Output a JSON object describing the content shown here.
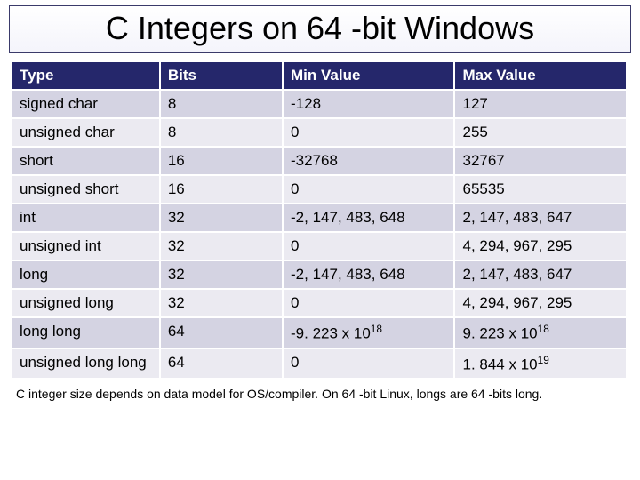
{
  "title": "C Integers on 64 -bit Windows",
  "table": {
    "type": "table",
    "header_bg": "#25276b",
    "header_fg": "#ffffff",
    "odd_row_bg": "#d4d3e2",
    "even_row_bg": "#ebeaf1",
    "columns": [
      "Type",
      "Bits",
      "Min Value",
      "Max Value"
    ],
    "rows": [
      {
        "type": "signed char",
        "bits": "8",
        "min": "-128",
        "max": "127"
      },
      {
        "type": "unsigned char",
        "bits": "8",
        "min": "0",
        "max": "255"
      },
      {
        "type": "short",
        "bits": "16",
        "min": "-32768",
        "max": "32767"
      },
      {
        "type": "unsigned short",
        "bits": "16",
        "min": "0",
        "max": "65535"
      },
      {
        "type": "int",
        "bits": "32",
        "min": "-2, 147, 483, 648",
        "max": "2, 147, 483, 647"
      },
      {
        "type": "unsigned int",
        "bits": "32",
        "min": "0",
        "max": "4, 294, 967, 295"
      },
      {
        "type": "long",
        "bits": "32",
        "min": "-2, 147, 483, 648",
        "max": "2, 147, 483, 647"
      },
      {
        "type": "unsigned long",
        "bits": "32",
        "min": "0",
        "max": "4, 294, 967, 295"
      },
      {
        "type": "long long",
        "bits": "64",
        "min_html": "-9. 223 x 10<sup>18</sup>",
        "max_html": "9. 223 x 10<sup>18</sup>"
      },
      {
        "type": "unsigned long long",
        "bits": "64",
        "min": "0",
        "max_html": "1. 844 x 10<sup>19</sup>"
      }
    ]
  },
  "footnote": "C integer size depends on data model for OS/compiler.  On 64 -bit Linux, longs are 64 -bits long."
}
